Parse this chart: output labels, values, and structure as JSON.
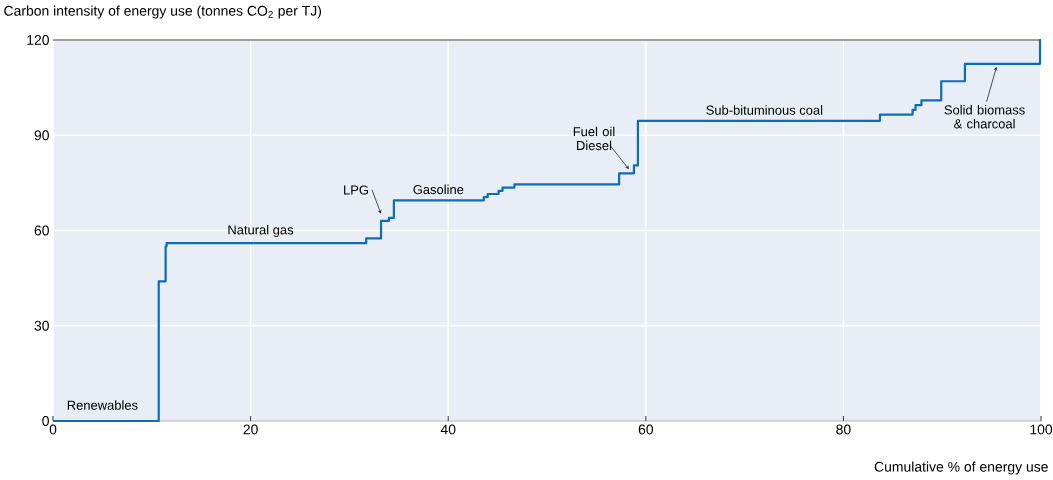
{
  "chart_data": {
    "type": "step",
    "xlabel": "Cumulative % of energy use",
    "ylabel": "Carbon intensity of energy use (tonnes CO$_{2}$ per TJ)",
    "x": [
      0,
      10.7,
      11.4,
      11.5,
      31.7,
      33.2,
      34.0,
      34.5,
      43.6,
      44.0,
      45.1,
      45.5,
      46.7,
      57.3,
      58.8,
      59.2,
      83.7,
      87.0,
      87.3,
      87.9,
      89.9,
      92.3,
      99.9,
      100
    ],
    "values": [
      0,
      44,
      55,
      56,
      57.5,
      63,
      64,
      69.5,
      70.5,
      71.5,
      72.5,
      73.5,
      74.5,
      78,
      80.5,
      94.5,
      96.5,
      98,
      99.5,
      101,
      107,
      112.5,
      120,
      120
    ],
    "color": "#0a6db7",
    "xlim": [
      0,
      100
    ],
    "ylim": [
      0,
      120
    ],
    "xticks": [
      0,
      20,
      40,
      60,
      80,
      100
    ],
    "yticks": [
      0,
      30,
      60,
      90,
      120
    ],
    "grid": true,
    "annotations": [
      {
        "text": "Renewables",
        "x": 5,
        "y": 0
      },
      {
        "text": "Natural gas",
        "x": 21,
        "y": 56
      },
      {
        "text": "LPG",
        "x": 33.5,
        "y": 64
      },
      {
        "text": "Gasoline",
        "x": 39,
        "y": 69.5
      },
      {
        "text": "Fuel oil Diesel",
        "x": 58.6,
        "y": 78
      },
      {
        "text": "Sub-bituminous coal",
        "x": 72,
        "y": 94.5
      },
      {
        "text": "Solid biomass & charcoal",
        "x": 95.5,
        "y": 112.5
      }
    ]
  }
}
